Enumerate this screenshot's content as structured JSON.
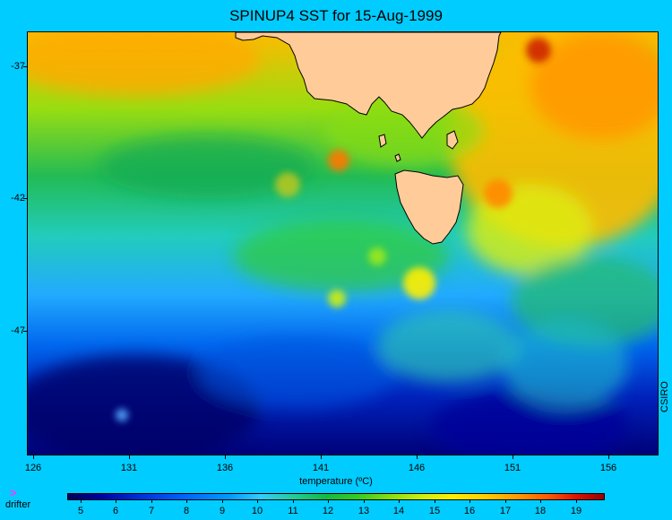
{
  "title": "SPINUP4 SST for 15-Aug-1999",
  "map": {
    "y_ticks": [
      "-37",
      "-42",
      "-47"
    ],
    "x_ticks": [
      "126",
      "131",
      "136",
      "141",
      "146",
      "151",
      "156"
    ],
    "credit": "CSIRO",
    "land_color": "#ffcc99"
  },
  "legend": {
    "title": "temperature (ºC)",
    "drifter_marker": ">",
    "drifter_label": "drifter",
    "scale_labels": [
      "5",
      "6",
      "7",
      "8",
      "9",
      "10",
      "11",
      "12",
      "13",
      "14",
      "15",
      "16",
      "17",
      "18",
      "19"
    ]
  }
}
